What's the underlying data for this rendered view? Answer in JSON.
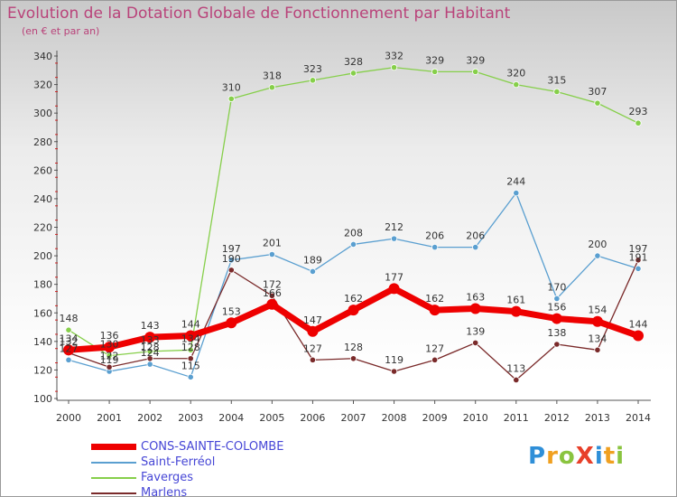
{
  "title": "Evolution de la Dotation Globale de Fonctionnement par Habitant",
  "subtitle": "(en € et par an)",
  "brand": "ProXiti",
  "colors": {
    "CONS-SAINTE-COLOMBE": "#ee0000",
    "Saint-Ferréol": "#5a9fd0",
    "Faverges": "#86cf4a",
    "Marlens": "#7a2a2a"
  },
  "chart_data": {
    "type": "line",
    "title": "Evolution de la Dotation Globale de Fonctionnement par Habitant",
    "subtitle": "(en € et par an)",
    "xlabel": "",
    "ylabel": "",
    "ylim": [
      100,
      340
    ],
    "yticks": [
      100,
      120,
      140,
      160,
      180,
      200,
      220,
      240,
      260,
      280,
      300,
      320,
      340
    ],
    "grid": false,
    "legend_position": "bottom-left",
    "x": [
      "2000",
      "2001",
      "2002",
      "2003",
      "2004",
      "2005",
      "2006",
      "2007",
      "2008",
      "2009",
      "2010",
      "2011",
      "2012",
      "2013",
      "2014"
    ],
    "series": [
      {
        "name": "Saint-Ferréol",
        "values": [
          127,
          119,
          124,
          115,
          197,
          201,
          189,
          208,
          212,
          206,
          206,
          244,
          170,
          200,
          191
        ]
      },
      {
        "name": "Faverges",
        "values": [
          148,
          130,
          133,
          134,
          310,
          318,
          323,
          328,
          332,
          329,
          329,
          320,
          315,
          307,
          293
        ]
      },
      {
        "name": "Marlens",
        "values": [
          132,
          122,
          128,
          128,
          190,
          172,
          127,
          128,
          119,
          127,
          139,
          113,
          138,
          134,
          197
        ]
      },
      {
        "name": "CONS-SAINTE-COLOMBE",
        "values": [
          134,
          136,
          143,
          144,
          153,
          166,
          147,
          162,
          177,
          162,
          163,
          161,
          156,
          154,
          144
        ]
      }
    ],
    "data_labels": {
      "Saint-Ferréol": [
        "127",
        "119",
        "124",
        "115",
        "197",
        "201",
        "189",
        "208",
        "212",
        "206",
        "206",
        "244",
        "170",
        "200",
        "191"
      ],
      "Faverges": [
        "148",
        "130",
        "133",
        "134",
        "310",
        "318",
        "323",
        "328",
        "332",
        "329",
        "329",
        "320",
        "315",
        "307",
        "293"
      ],
      "Marlens": [
        "132",
        "122",
        "128",
        "128",
        "190",
        "172",
        "127",
        "128",
        "119",
        "127",
        "139",
        "113",
        "138",
        "134",
        "197"
      ],
      "CONS-SAINTE-COLOMBE": [
        "134",
        "136",
        "143",
        "144",
        "153",
        "166",
        "147",
        "162",
        "177",
        "162",
        "163",
        "161",
        "156",
        "154",
        "144"
      ]
    }
  }
}
